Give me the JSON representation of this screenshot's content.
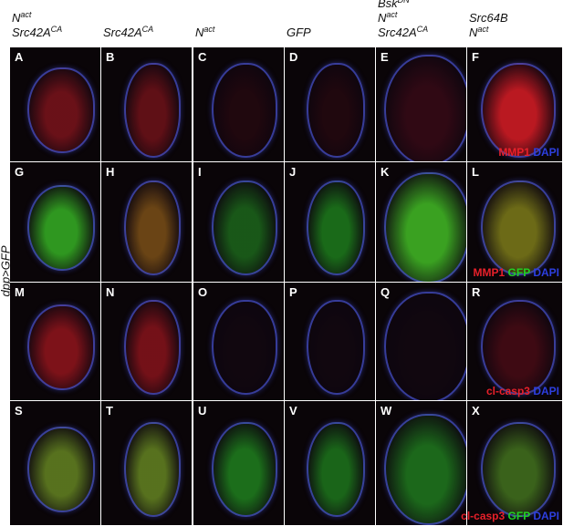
{
  "columns": [
    {
      "lines": [
        {
          "text": "N",
          "sup": "act"
        },
        {
          "text": "Src42A",
          "sup": "CA"
        }
      ]
    },
    {
      "lines": [
        {
          "text": "Src42A",
          "sup": "CA"
        }
      ]
    },
    {
      "lines": [
        {
          "text": "N",
          "sup": "act"
        }
      ]
    },
    {
      "lines": [
        {
          "text": "GFP"
        }
      ]
    },
    {
      "lines": [
        {
          "text": "Bsk",
          "sup": "DN"
        },
        {
          "text": "N",
          "sup": "act"
        },
        {
          "text": "Src42A",
          "sup": "CA"
        }
      ]
    },
    {
      "lines": [
        {
          "text": "Src64B"
        },
        {
          "text": "N",
          "sup": "act"
        }
      ]
    }
  ],
  "panels": [
    "A",
    "B",
    "C",
    "D",
    "E",
    "F",
    "G",
    "H",
    "I",
    "J",
    "K",
    "L",
    "M",
    "N",
    "O",
    "P",
    "Q",
    "R",
    "S",
    "T",
    "U",
    "V",
    "W",
    "X"
  ],
  "side_label": "dpp>GFP",
  "stain_labels": [
    [
      {
        "text": "MMP1",
        "color": "#e8202a"
      },
      {
        "text": "DAPI",
        "color": "#2d3fe0"
      }
    ],
    [
      {
        "text": "MMP1",
        "color": "#e8202a"
      },
      {
        "text": "GFP",
        "color": "#22d022"
      },
      {
        "text": "DAPI",
        "color": "#2d3fe0"
      }
    ],
    [
      {
        "text": "cl-casp3",
        "color": "#e8202a"
      },
      {
        "text": "DAPI",
        "color": "#2d3fe0"
      }
    ],
    [
      {
        "text": "cl-casp3",
        "color": "#e8202a"
      },
      {
        "text": "GFP",
        "color": "#22d022"
      },
      {
        "text": "DAPI",
        "color": "#2d3fe0"
      }
    ]
  ]
}
